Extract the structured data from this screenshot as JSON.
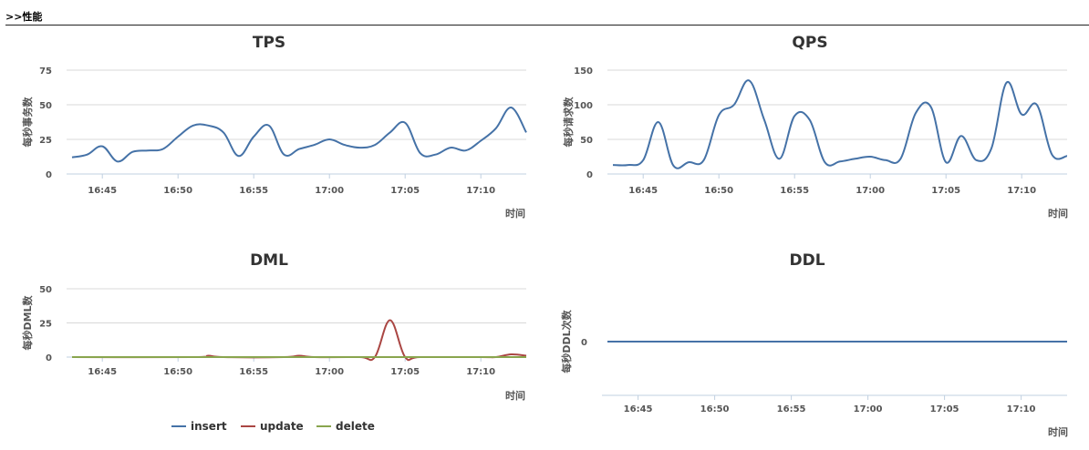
{
  "header": {
    "section_title": ">>性能"
  },
  "colors": {
    "insert": "#4572A7",
    "update": "#AA4643",
    "delete": "#89A54E",
    "grid": "#D8D8D8",
    "axis": "#C0D0E0"
  },
  "chart_data": [
    {
      "id": "tps",
      "type": "line",
      "title": "TPS",
      "xlabel": "时间",
      "ylabel": "每秒事务数",
      "xlim": [
        16.7,
        17.215
      ],
      "ylim": [
        0,
        75
      ],
      "yticks": [
        0,
        25,
        50,
        75
      ],
      "xticks": [
        "16:45",
        "16:50",
        "16:55",
        "17:00",
        "17:05",
        "17:10"
      ],
      "series": [
        {
          "color": "#4572A7",
          "x": [
            "16:43",
            "16:44",
            "16:45",
            "16:46",
            "16:47",
            "16:48",
            "16:49",
            "16:50",
            "16:51",
            "16:52",
            "16:53",
            "16:54",
            "16:55",
            "16:56",
            "16:57",
            "16:58",
            "16:59",
            "17:00",
            "17:01",
            "17:02",
            "17:03",
            "17:04",
            "17:05",
            "17:06",
            "17:07",
            "17:08",
            "17:09",
            "17:10",
            "17:11",
            "17:12",
            "17:13"
          ],
          "values": [
            12,
            14,
            20,
            9,
            16,
            17,
            18,
            27,
            35,
            35,
            30,
            13,
            27,
            35,
            14,
            18,
            21,
            25,
            21,
            19,
            21,
            30,
            37,
            15,
            14,
            19,
            17,
            24,
            33,
            48,
            30
          ]
        }
      ]
    },
    {
      "id": "qps",
      "type": "line",
      "title": "QPS",
      "xlabel": "时间",
      "ylabel": "每秒请求数",
      "xlim": [
        16.7,
        17.215
      ],
      "ylim": [
        0,
        150
      ],
      "yticks": [
        0,
        50,
        100,
        150
      ],
      "xticks": [
        "16:45",
        "16:50",
        "16:55",
        "17:00",
        "17:05",
        "17:10"
      ],
      "series": [
        {
          "color": "#4572A7",
          "x": [
            "16:43",
            "16:44",
            "16:45",
            "16:46",
            "16:47",
            "16:48",
            "16:49",
            "16:50",
            "16:51",
            "16:52",
            "16:53",
            "16:54",
            "16:55",
            "16:56",
            "16:57",
            "16:58",
            "16:59",
            "17:00",
            "17:01",
            "17:02",
            "17:03",
            "17:04",
            "17:05",
            "17:06",
            "17:07",
            "17:08",
            "17:09",
            "17:10",
            "17:11",
            "17:12",
            "17:13"
          ],
          "values": [
            13,
            13,
            20,
            75,
            12,
            17,
            20,
            85,
            100,
            135,
            78,
            22,
            84,
            78,
            17,
            18,
            22,
            25,
            20,
            22,
            88,
            97,
            17,
            55,
            20,
            37,
            132,
            86,
            100,
            28,
            26
          ]
        }
      ]
    },
    {
      "id": "dml",
      "type": "line",
      "title": "DML",
      "xlabel": "时间",
      "ylabel": "每秒DML数",
      "xlim": [
        16.7,
        17.215
      ],
      "ylim": [
        0,
        50
      ],
      "yticks": [
        0,
        25,
        50
      ],
      "xticks": [
        "16:45",
        "16:50",
        "16:55",
        "17:00",
        "17:05",
        "17:10"
      ],
      "series": [
        {
          "name": "insert",
          "color": "#4572A7",
          "x": [
            "16:43",
            "16:52",
            "17:00",
            "17:13"
          ],
          "values": [
            0,
            0,
            0,
            0
          ]
        },
        {
          "name": "update",
          "color": "#AA4643",
          "x": [
            "16:43",
            "16:51",
            "16:52",
            "16:53",
            "16:57",
            "16:58",
            "16:59",
            "17:02",
            "17:03",
            "17:04",
            "17:05",
            "17:06",
            "17:10",
            "17:11",
            "17:12",
            "17:13"
          ],
          "values": [
            0,
            0,
            1,
            0,
            0,
            1,
            0,
            0,
            0,
            27,
            0,
            0,
            0,
            0,
            2,
            1
          ]
        },
        {
          "name": "delete",
          "color": "#89A54E",
          "x": [
            "16:43",
            "17:13"
          ],
          "values": [
            0,
            0
          ]
        }
      ],
      "legend": [
        "insert",
        "update",
        "delete"
      ]
    },
    {
      "id": "ddl",
      "type": "line",
      "title": "DDL",
      "xlabel": "时间",
      "ylabel": "每秒DDL次数",
      "xlim": [
        16.7,
        17.215
      ],
      "ylim": [
        -1,
        1
      ],
      "yticks": [
        0
      ],
      "xticks": [
        "16:45",
        "16:50",
        "16:55",
        "17:00",
        "17:05",
        "17:10"
      ],
      "series": [
        {
          "color": "#4572A7",
          "x": [
            "16:43",
            "17:13"
          ],
          "values": [
            0,
            0
          ]
        }
      ]
    }
  ]
}
